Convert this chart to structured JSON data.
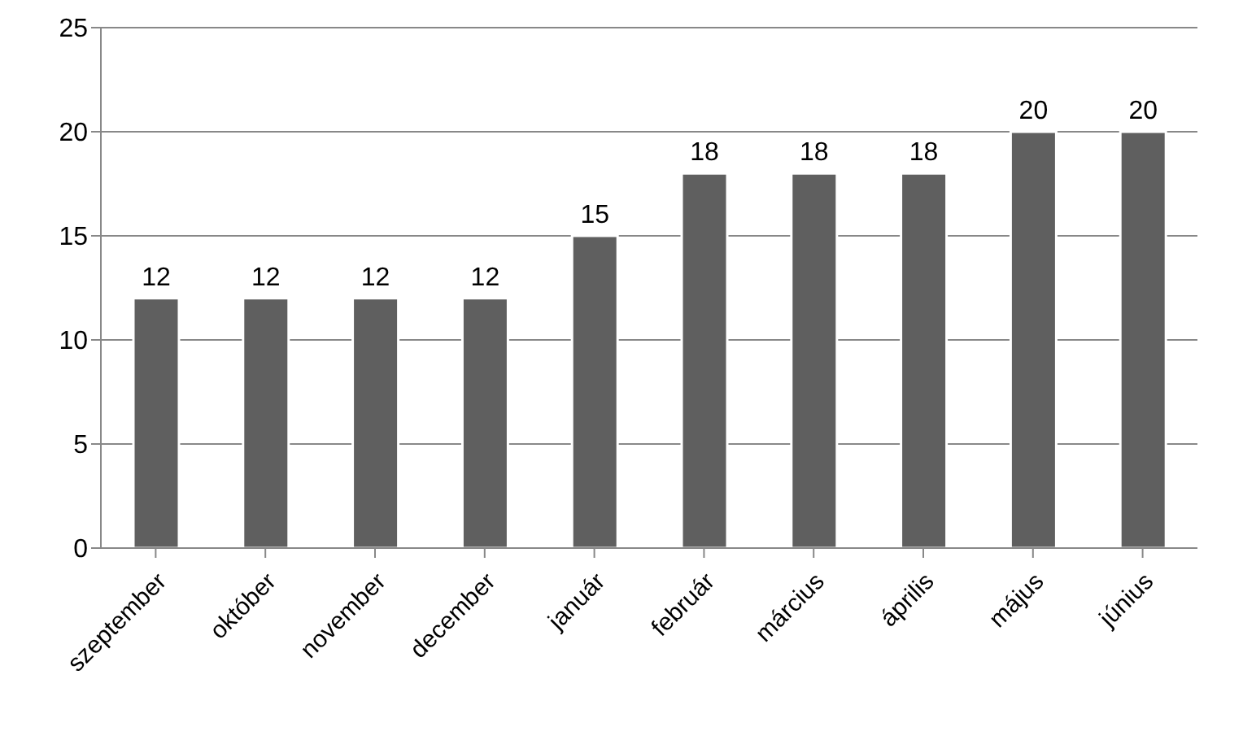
{
  "chart_data": {
    "type": "bar",
    "categories": [
      "szeptember",
      "október",
      "november",
      "december",
      "január",
      "február",
      "március",
      "április",
      "május",
      "június"
    ],
    "values": [
      12,
      12,
      12,
      12,
      15,
      18,
      18,
      18,
      20,
      20
    ],
    "color": "#5f5f5f",
    "ylim": [
      0,
      25
    ],
    "yticks": [
      0,
      5,
      10,
      15,
      20,
      25
    ],
    "grid": "y",
    "data_labels": true
  }
}
